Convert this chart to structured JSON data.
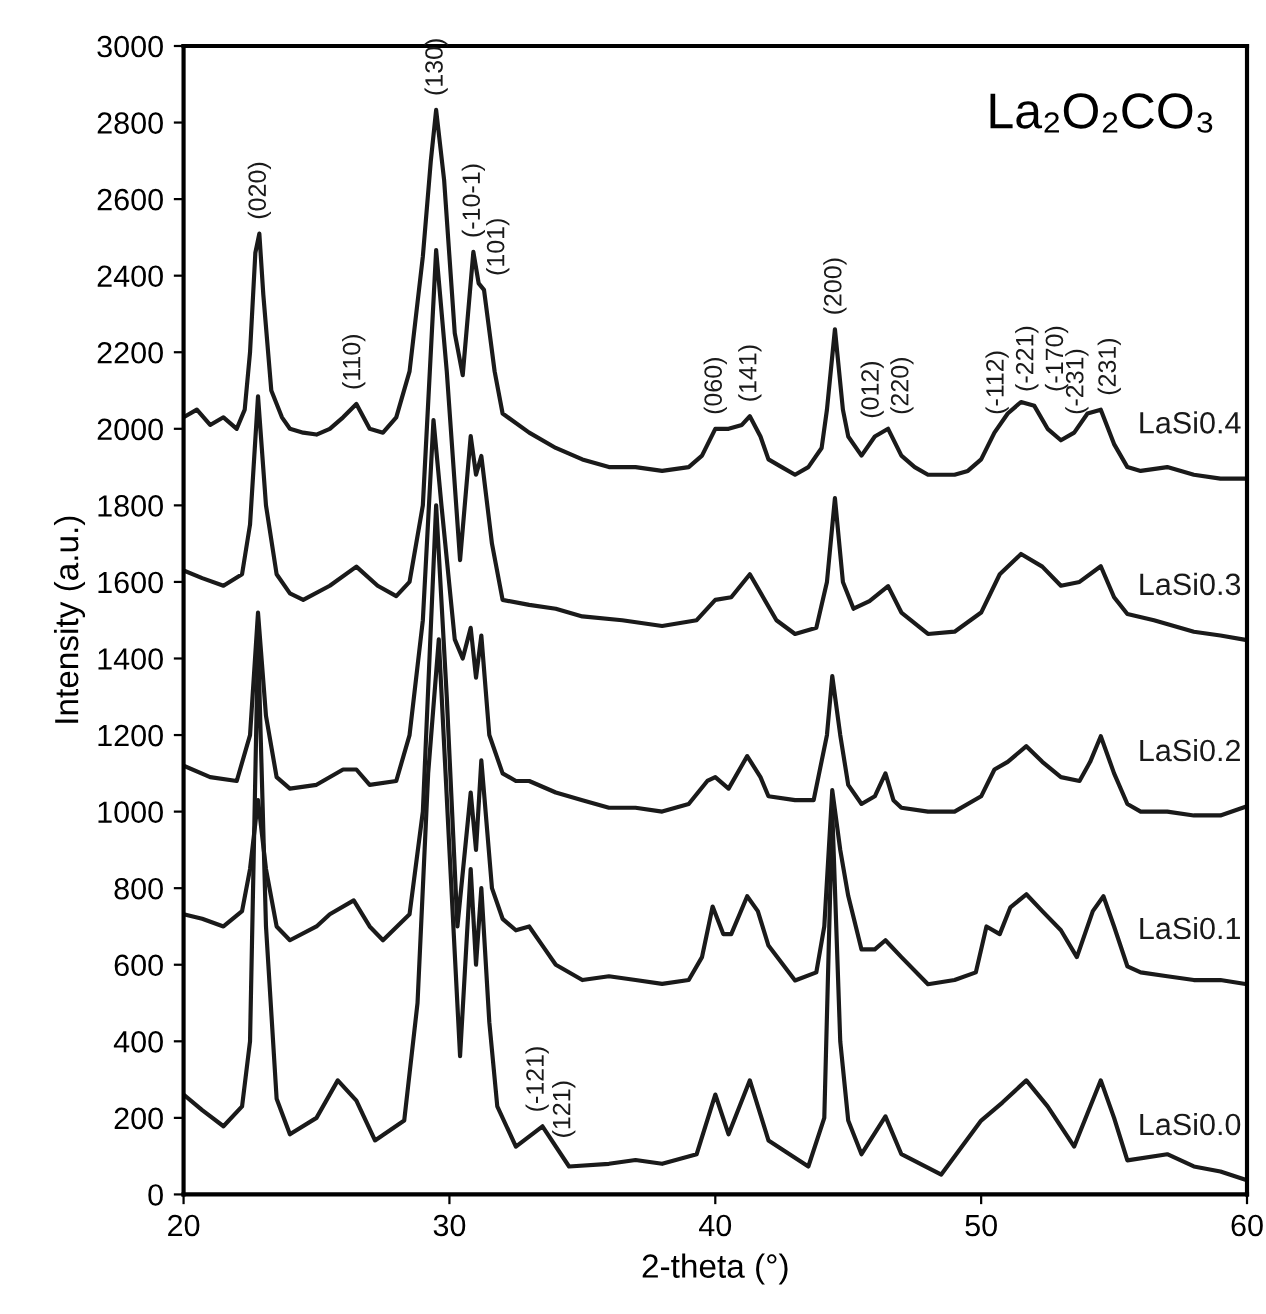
{
  "chart_data": {
    "type": "line",
    "xlabel": "2-theta (°)",
    "ylabel": "Intensity (a.u.)",
    "xlim": [
      20,
      60
    ],
    "ylim": [
      0,
      3000
    ],
    "xticks": [
      20,
      30,
      40,
      50,
      60
    ],
    "yticks": [
      0,
      200,
      400,
      600,
      800,
      1000,
      1200,
      1400,
      1600,
      1800,
      2000,
      2200,
      2400,
      2600,
      2800,
      3000
    ],
    "grid": false,
    "legend": false,
    "marker": "none",
    "line_style": "solid",
    "series": [
      {
        "name": "LaSi0.4",
        "color": "#1a1a1a",
        "x": [
          20,
          20.5,
          21,
          21.5,
          22,
          22.3,
          22.5,
          22.7,
          22.85,
          23.0,
          23.3,
          23.7,
          24,
          24.5,
          25,
          25.5,
          26,
          26.5,
          27,
          27.5,
          28,
          28.5,
          29,
          29.3,
          29.5,
          29.8,
          30.2,
          30.5,
          30.9,
          31.1,
          31.3,
          31.7,
          32,
          33,
          34,
          35,
          36,
          37,
          38,
          39,
          39.5,
          40,
          40.5,
          41,
          41.3,
          41.7,
          42,
          42.5,
          43,
          43.5,
          44,
          44.2,
          44.5,
          44.8,
          45,
          45.5,
          46,
          46.5,
          47,
          47.5,
          48,
          49,
          49.5,
          50,
          50.5,
          51,
          51.5,
          52,
          52.5,
          53,
          53.5,
          54,
          54.5,
          55,
          55.5,
          56,
          57,
          58,
          59,
          60
        ],
        "values": [
          2030,
          2050,
          2010,
          2030,
          2000,
          2050,
          2200,
          2460,
          2510,
          2350,
          2100,
          2030,
          2000,
          1990,
          1985,
          2000,
          2030,
          2065,
          2000,
          1990,
          2030,
          2150,
          2450,
          2700,
          2833,
          2650,
          2250,
          2140,
          2462,
          2380,
          2363,
          2150,
          2040,
          1990,
          1950,
          1920,
          1900,
          1900,
          1890,
          1900,
          1930,
          2000,
          2000,
          2010,
          2033,
          1980,
          1920,
          1900,
          1880,
          1900,
          1950,
          2050,
          2260,
          2050,
          1980,
          1930,
          1980,
          2000,
          1930,
          1900,
          1880,
          1880,
          1890,
          1920,
          1990,
          2040,
          2070,
          2060,
          2000,
          1970,
          1990,
          2040,
          2050,
          1960,
          1900,
          1890,
          1900,
          1880,
          1870,
          1870
        ]
      },
      {
        "name": "LaSi0.3",
        "color": "#1a1a1a",
        "x": [
          20,
          20.7,
          21.5,
          22.2,
          22.5,
          22.8,
          23.1,
          23.5,
          24,
          24.5,
          25.5,
          26.5,
          27.3,
          28,
          28.5,
          29,
          29.5,
          29.9,
          30.4,
          30.8,
          31.0,
          31.2,
          31.6,
          32,
          33,
          34,
          35,
          36.5,
          38,
          39.3,
          40,
          40.6,
          41.3,
          41.8,
          42.3,
          43,
          43.8,
          44.2,
          44.5,
          44.8,
          45.2,
          45.8,
          46.5,
          47,
          48,
          49,
          50,
          50.7,
          51.5,
          52.3,
          53,
          53.7,
          54.5,
          55,
          55.5,
          56.5,
          58,
          59,
          60
        ],
        "values": [
          1630,
          1610,
          1590,
          1620,
          1750,
          2085,
          1800,
          1620,
          1570,
          1553,
          1590,
          1640,
          1590,
          1563,
          1600,
          1800,
          2467,
          2150,
          1657,
          1981,
          1880,
          1929,
          1700,
          1553,
          1540,
          1530,
          1510,
          1500,
          1485,
          1500,
          1553,
          1560,
          1620,
          1560,
          1500,
          1464,
          1480,
          1600,
          1819,
          1600,
          1530,
          1550,
          1589,
          1520,
          1464,
          1470,
          1520,
          1620,
          1673,
          1640,
          1590,
          1600,
          1641,
          1560,
          1516,
          1500,
          1470,
          1460,
          1448
        ]
      },
      {
        "name": "LaSi0.2",
        "color": "#1a1a1a",
        "x": [
          20,
          21,
          22,
          22.5,
          22.8,
          23.1,
          23.5,
          24,
          25,
          26,
          26.5,
          27,
          28,
          28.5,
          29,
          29.4,
          29.7,
          30.2,
          30.5,
          30.8,
          31.0,
          31.2,
          31.5,
          32,
          32.5,
          33,
          34,
          35,
          36,
          37,
          38,
          39,
          39.7,
          40,
          40.5,
          41.2,
          41.7,
          42,
          43,
          43.7,
          44.2,
          44.4,
          44.7,
          45,
          45.5,
          46,
          46.4,
          46.7,
          47,
          48,
          49,
          50,
          50.5,
          51,
          51.7,
          52.3,
          53,
          53.7,
          54.1,
          54.5,
          55,
          55.5,
          56,
          57,
          58,
          59,
          60
        ],
        "values": [
          1120,
          1090,
          1080,
          1200,
          1520,
          1250,
          1090,
          1060,
          1070,
          1110,
          1110,
          1070,
          1080,
          1200,
          1500,
          2023,
          1800,
          1450,
          1400,
          1480,
          1350,
          1460,
          1200,
          1100,
          1080,
          1080,
          1050,
          1030,
          1010,
          1010,
          1000,
          1020,
          1080,
          1090,
          1060,
          1145,
          1090,
          1040,
          1030,
          1030,
          1200,
          1354,
          1200,
          1070,
          1020,
          1040,
          1100,
          1030,
          1010,
          1000,
          1000,
          1040,
          1110,
          1130,
          1171,
          1130,
          1090,
          1080,
          1130,
          1197,
          1100,
          1020,
          1000,
          1000,
          990,
          990,
          1014
        ]
      },
      {
        "name": "LaSi0.1",
        "color": "#1a1a1a",
        "x": [
          20,
          20.7,
          21.5,
          22.2,
          22.5,
          22.8,
          23.1,
          23.5,
          24,
          25,
          25.5,
          26.4,
          27,
          27.5,
          28.5,
          29,
          29.5,
          29.9,
          30.3,
          30.8,
          31.0,
          31.2,
          31.6,
          32,
          32.5,
          33,
          33.5,
          34,
          35,
          36,
          37,
          38,
          39,
          39.5,
          39.9,
          40.3,
          40.6,
          41.2,
          41.6,
          42,
          43,
          43.8,
          44.1,
          44.4,
          44.7,
          45,
          45.5,
          46,
          46.4,
          47,
          48,
          49,
          49.8,
          50.2,
          50.7,
          51.1,
          51.7,
          52.3,
          53,
          53.6,
          54.2,
          54.6,
          55,
          55.5,
          56,
          57,
          58,
          59,
          60
        ],
        "values": [
          732,
          720,
          700,
          740,
          850,
          1030,
          850,
          700,
          664,
          700,
          732,
          768,
          700,
          664,
          732,
          1000,
          1800,
          1300,
          700,
          1050,
          900,
          1134,
          800,
          720,
          690,
          700,
          650,
          600,
          560,
          570,
          560,
          550,
          560,
          620,
          752,
          680,
          680,
          779,
          740,
          650,
          559,
          580,
          700,
          1056,
          900,
          780,
          640,
          640,
          664,
          620,
          549,
          560,
          580,
          700,
          680,
          750,
          784,
          740,
          690,
          620,
          740,
          779,
          700,
          596,
          580,
          570,
          560,
          560,
          549
        ]
      },
      {
        "name": "LaSi0.0",
        "color": "#1a1a1a",
        "x": [
          20,
          20.7,
          21.5,
          22.2,
          22.5,
          22.8,
          23.1,
          23.5,
          24,
          25,
          25.8,
          26.5,
          27.2,
          28.3,
          28.8,
          29.2,
          29.6,
          30.0,
          30.4,
          30.8,
          31.0,
          31.2,
          31.5,
          31.8,
          32.5,
          33.5,
          34.5,
          36,
          37,
          38,
          39.3,
          40,
          40.5,
          41.3,
          42,
          43.5,
          44.1,
          44.4,
          44.7,
          45,
          45.5,
          46.4,
          47,
          48.5,
          50,
          50.8,
          51.7,
          52.5,
          53.5,
          54.5,
          55,
          55.5,
          57,
          58,
          59,
          60
        ],
        "values": [
          261,
          220,
          178,
          230,
          400,
          1450,
          700,
          250,
          157,
          200,
          298,
          245,
          141,
          193,
          500,
          1100,
          1450,
          900,
          361,
          850,
          600,
          800,
          450,
          230,
          125,
          178,
          73,
          80,
          90,
          80,
          105,
          261,
          157,
          298,
          141,
          73,
          200,
          1000,
          400,
          193,
          105,
          204,
          105,
          52,
          193,
          240,
          298,
          230,
          125,
          298,
          200,
          89,
          105,
          73,
          60,
          37
        ]
      }
    ],
    "annotations": [
      "La₂O₂CO₃",
      {
        "text": "(020)",
        "x": 22.85,
        "y": 2510
      },
      {
        "text": "(110)",
        "x": 26.4,
        "y": 2065
      },
      {
        "text": "(130)",
        "x": 29.5,
        "y": 2833
      },
      {
        "text": "(-10-1)",
        "x": 30.9,
        "y": 2462
      },
      {
        "text": "(101)",
        "x": 31.4,
        "y": 2363
      },
      {
        "text": "(060)",
        "x": 40.0,
        "y": 2000
      },
      {
        "text": "(141)",
        "x": 41.3,
        "y": 2033
      },
      {
        "text": "(200)",
        "x": 44.5,
        "y": 2260
      },
      {
        "text": "(012)",
        "x": 45.9,
        "y": 1990
      },
      {
        "text": "(220)",
        "x": 46.6,
        "y": 2000
      },
      {
        "text": "(-112)",
        "x": 50.6,
        "y": 2000
      },
      {
        "text": "(-221)",
        "x": 51.3,
        "y": 2060
      },
      {
        "text": "(-170)",
        "x": 52.0,
        "y": 2060
      },
      {
        "text": "(-231)",
        "x": 53.6,
        "y": 2000
      },
      {
        "text": "(231)",
        "x": 54.4,
        "y": 2050
      },
      {
        "text": "(-121)",
        "x": 33.3,
        "y": 178
      },
      {
        "text": "(121)",
        "x": 34.3,
        "y": 110
      }
    ]
  }
}
